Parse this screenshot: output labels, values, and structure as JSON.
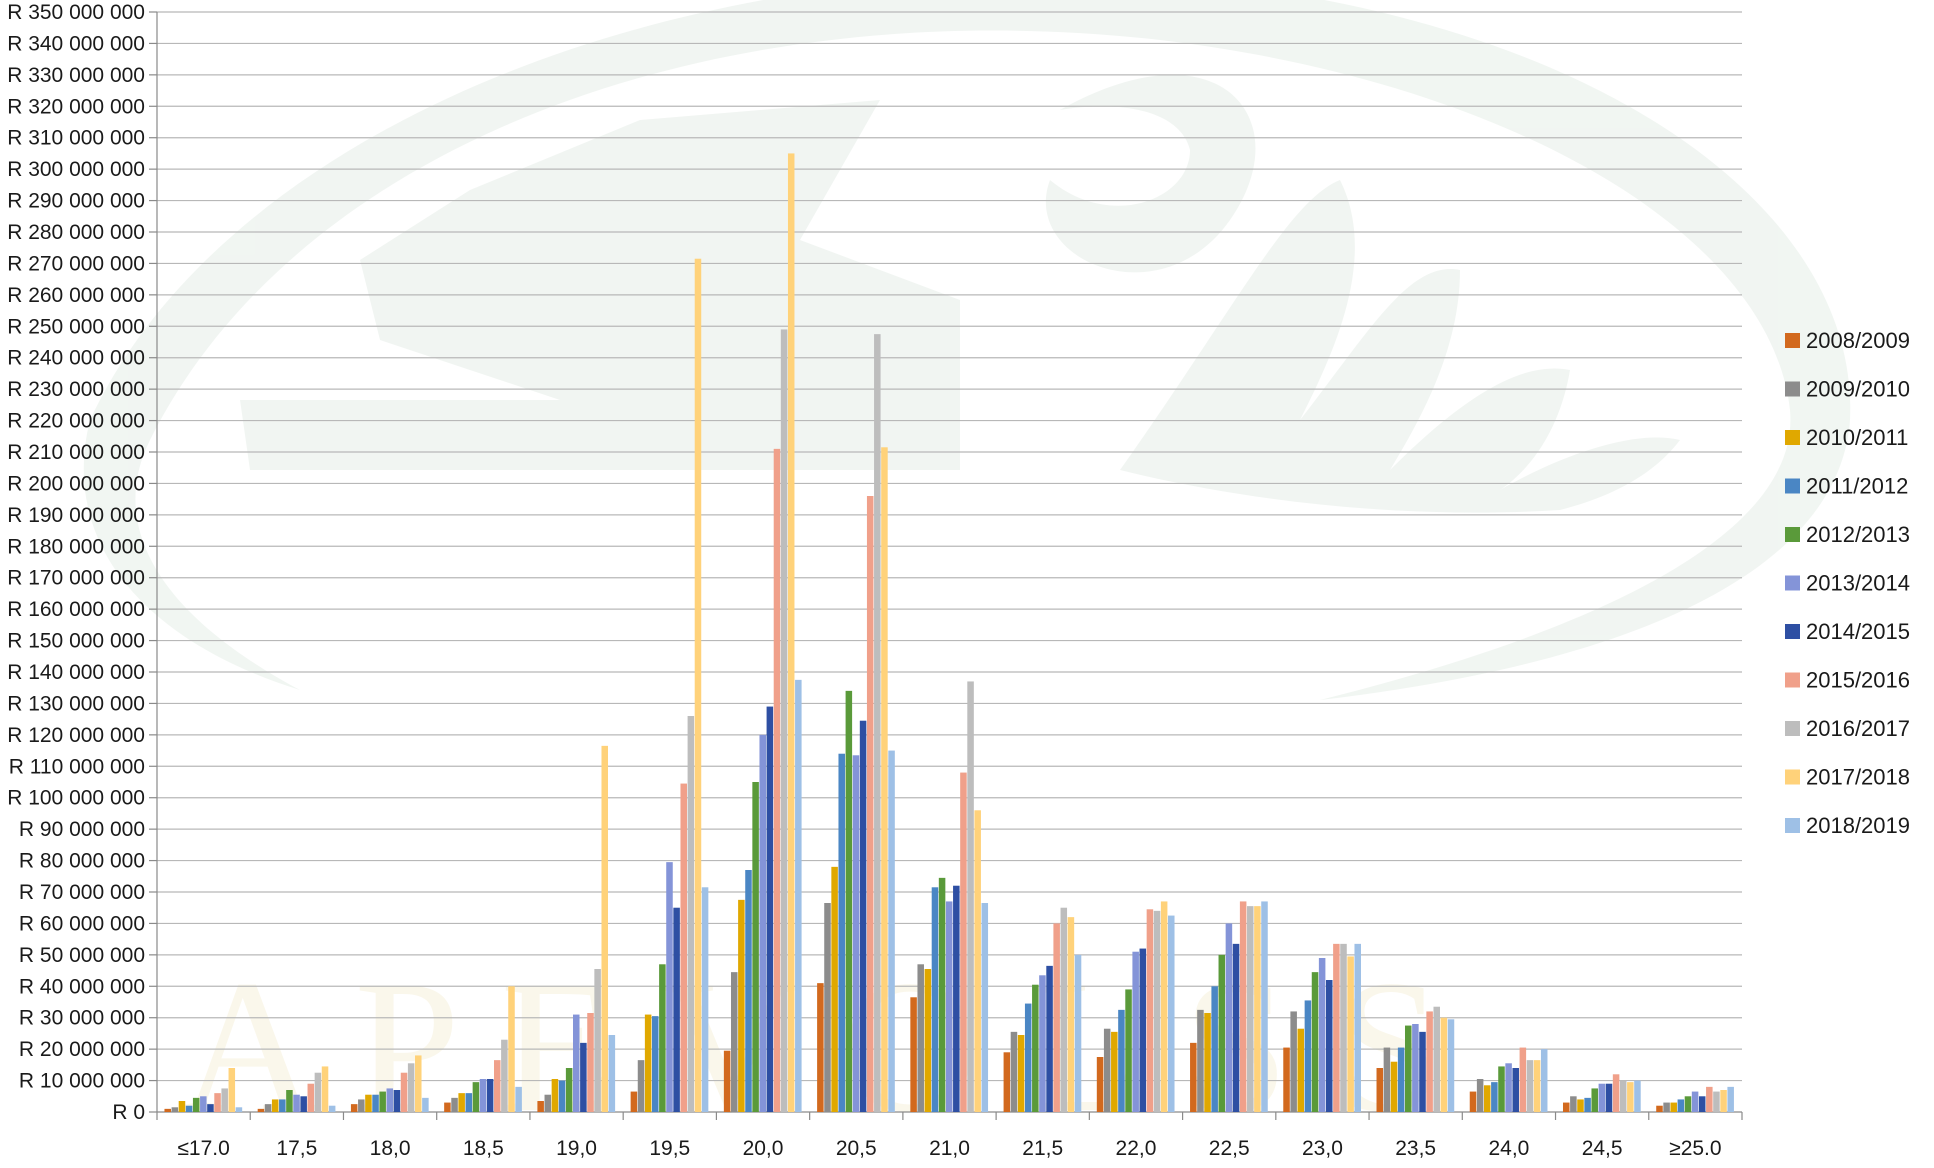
{
  "chart_data": {
    "type": "bar",
    "title": "",
    "xlabel": "",
    "ylabel": "",
    "ylim": [
      0,
      350000000
    ],
    "ytick_step": 10000000,
    "y_tick_labels": [
      "R 0",
      "R 10 000 000",
      "R 20 000 000",
      "R 30 000 000",
      "R 40 000 000",
      "R 50 000 000",
      "R 60 000 000",
      "R 70 000 000",
      "R 80 000 000",
      "R 90 000 000",
      "R 100 000 000",
      "R 110 000 000",
      "R 120 000 000",
      "R 130 000 000",
      "R 140 000 000",
      "R 150 000 000",
      "R 160 000 000",
      "R 170 000 000",
      "R 180 000 000",
      "R 190 000 000",
      "R 200 000 000",
      "R 210 000 000",
      "R 220 000 000",
      "R 230 000 000",
      "R 240 000 000",
      "R 250 000 000",
      "R 260 000 000",
      "R 270 000 000",
      "R 280 000 000",
      "R 290 000 000",
      "R 300 000 000",
      "R 310 000 000",
      "R 320 000 000",
      "R 330 000 000",
      "R 340 000 000",
      "R 350 000 000"
    ],
    "grid": true,
    "legend_position": "right",
    "categories": [
      "≤17.0",
      "17,5",
      "18,0",
      "18,5",
      "19,0",
      "19,5",
      "20,0",
      "20,5",
      "21,0",
      "21,5",
      "22,0",
      "22,5",
      "23,0",
      "23,5",
      "24,0",
      "24,5",
      "≥25.0"
    ],
    "series": [
      {
        "name": "2008/2009",
        "color": "#D2691E",
        "values": [
          1000000,
          1000000,
          2500000,
          3000000,
          3500000,
          6500000,
          19500000,
          41000000,
          36500000,
          19000000,
          17500000,
          22000000,
          20500000,
          14000000,
          6500000,
          3000000,
          2000000
        ]
      },
      {
        "name": "2009/2010",
        "color": "#8C8C8C",
        "values": [
          1500000,
          2500000,
          4000000,
          4500000,
          5500000,
          16500000,
          44500000,
          66500000,
          47000000,
          25500000,
          26500000,
          32500000,
          32000000,
          20500000,
          10500000,
          5000000,
          3000000
        ]
      },
      {
        "name": "2010/2011",
        "color": "#E0A800",
        "values": [
          3500000,
          4000000,
          5500000,
          6000000,
          10500000,
          31000000,
          67500000,
          78000000,
          45500000,
          24500000,
          25500000,
          31500000,
          26500000,
          16000000,
          8500000,
          4000000,
          3000000
        ]
      },
      {
        "name": "2011/2012",
        "color": "#4A86C4",
        "values": [
          2000000,
          4000000,
          5500000,
          6000000,
          10000000,
          30500000,
          77000000,
          114000000,
          71500000,
          34500000,
          32500000,
          40000000,
          35500000,
          20500000,
          9500000,
          4500000,
          4000000
        ]
      },
      {
        "name": "2012/2013",
        "color": "#5A9A3A",
        "values": [
          4500000,
          7000000,
          6500000,
          9500000,
          14000000,
          47000000,
          105000000,
          134000000,
          74500000,
          40500000,
          39000000,
          50000000,
          44500000,
          27500000,
          14500000,
          7500000,
          5000000
        ]
      },
      {
        "name": "2013/2014",
        "color": "#8494D8",
        "values": [
          5000000,
          5500000,
          7500000,
          10500000,
          31000000,
          79500000,
          120000000,
          113500000,
          67000000,
          43500000,
          51000000,
          60000000,
          49000000,
          28000000,
          15500000,
          9000000,
          6500000
        ]
      },
      {
        "name": "2014/2015",
        "color": "#2E4FA3",
        "values": [
          2500000,
          5000000,
          7000000,
          10500000,
          22000000,
          65000000,
          129000000,
          124500000,
          72000000,
          46500000,
          52000000,
          53500000,
          42000000,
          25500000,
          14000000,
          9000000,
          5000000
        ]
      },
      {
        "name": "2015/2016",
        "color": "#F0A08A",
        "values": [
          6000000,
          9000000,
          12500000,
          16500000,
          31500000,
          104500000,
          211000000,
          196000000,
          108000000,
          60000000,
          64500000,
          67000000,
          53500000,
          32000000,
          20500000,
          12000000,
          8000000
        ]
      },
      {
        "name": "2016/2017",
        "color": "#BDBDBD",
        "values": [
          7500000,
          12500000,
          15500000,
          23000000,
          45500000,
          126000000,
          249000000,
          247500000,
          137000000,
          65000000,
          64000000,
          65500000,
          53500000,
          33500000,
          16500000,
          10000000,
          6500000
        ]
      },
      {
        "name": "2017/2018",
        "color": "#FFD27A",
        "values": [
          14000000,
          14500000,
          18000000,
          40000000,
          116500000,
          271500000,
          305000000,
          211500000,
          96000000,
          62000000,
          67000000,
          65500000,
          49500000,
          30000000,
          16500000,
          9500000,
          7000000
        ]
      },
      {
        "name": "2018/2019",
        "color": "#9EC0E6",
        "values": [
          1500000,
          2000000,
          4500000,
          8000000,
          24500000,
          71500000,
          137500000,
          115000000,
          66500000,
          50000000,
          62500000,
          67000000,
          53500000,
          29500000,
          20000000,
          10000000,
          8000000
        ]
      }
    ]
  }
}
